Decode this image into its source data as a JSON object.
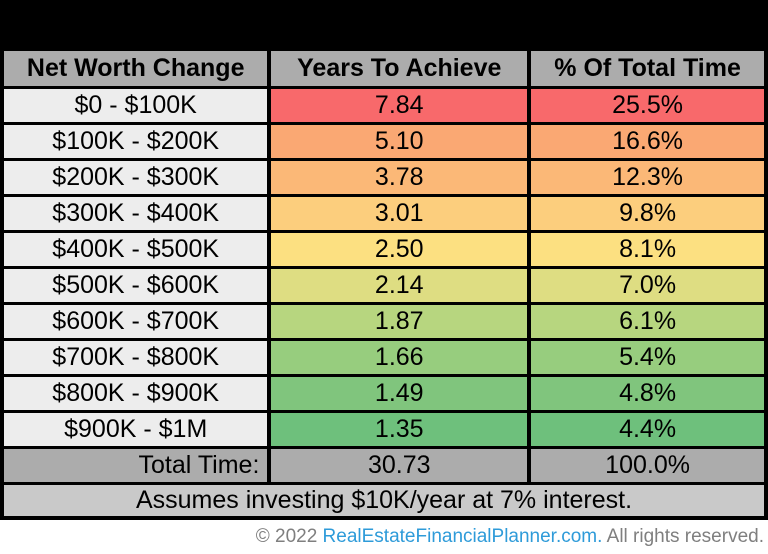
{
  "table": {
    "headers": [
      "Net Worth Change",
      "Years To Achieve",
      "% Of Total Time"
    ],
    "rows": [
      {
        "range": "$0 - $100K",
        "years": "7.84",
        "pct": "25.5%",
        "color": "#F8696B"
      },
      {
        "range": "$100K - $200K",
        "years": "5.10",
        "pct": "16.6%",
        "color": "#FAA873"
      },
      {
        "range": "$200K - $300K",
        "years": "3.78",
        "pct": "12.3%",
        "color": "#FBB877"
      },
      {
        "range": "$300K - $400K",
        "years": "3.01",
        "pct": "9.8%",
        "color": "#FCCE7D"
      },
      {
        "range": "$400K - $500K",
        "years": "2.50",
        "pct": "8.1%",
        "color": "#FCE081"
      },
      {
        "range": "$500K - $600K",
        "years": "2.14",
        "pct": "7.0%",
        "color": "#DEDD82"
      },
      {
        "range": "$600K - $700K",
        "years": "1.87",
        "pct": "6.1%",
        "color": "#B7D67F"
      },
      {
        "range": "$700K - $800K",
        "years": "1.66",
        "pct": "5.4%",
        "color": "#97CD7E"
      },
      {
        "range": "$800K - $900K",
        "years": "1.49",
        "pct": "4.8%",
        "color": "#80C57D"
      },
      {
        "range": "$900K - $1M",
        "years": "1.35",
        "pct": "4.4%",
        "color": "#6EC07C"
      }
    ],
    "total": {
      "label": "Total Time:",
      "years": "30.73",
      "pct": "100.0%"
    },
    "note": "Assumes investing $10K/year at 7% interest."
  },
  "footer": {
    "prefix": "© 2022 ",
    "link": "RealEstateFinancialPlanner.com.",
    "suffix": " All rights reserved."
  },
  "colors": {
    "header_bg": "#ACACAC",
    "range_cell_bg": "#EDEDED",
    "total_row_bg": "#ACACAC",
    "note_row_bg": "#C9C9C9",
    "scale_max_red": "#F8696B",
    "scale_mid_yellow": "#FCE081",
    "scale_min_green": "#6EC07C",
    "border": "#000000",
    "footer_text": "#7F7F7F",
    "footer_link": "#2E9BD9",
    "top_band": "#000000"
  },
  "chart_data": {
    "type": "table",
    "title": "",
    "columns": [
      "Net Worth Change",
      "Years To Achieve",
      "% Of Total Time"
    ],
    "categories": [
      "$0 - $100K",
      "$100K - $200K",
      "$200K - $300K",
      "$300K - $400K",
      "$400K - $500K",
      "$500K - $600K",
      "$600K - $700K",
      "$700K - $800K",
      "$800K - $900K",
      "$900K - $1M"
    ],
    "series": [
      {
        "name": "Years To Achieve",
        "values": [
          7.84,
          5.1,
          3.78,
          3.01,
          2.5,
          2.14,
          1.87,
          1.66,
          1.49,
          1.35
        ]
      },
      {
        "name": "% Of Total Time",
        "values": [
          25.5,
          16.6,
          12.3,
          9.8,
          8.1,
          7.0,
          6.1,
          5.4,
          4.8,
          4.4
        ]
      }
    ],
    "total_row": {
      "label": "Total Time:",
      "years": 30.73,
      "pct": 100.0
    },
    "annotations": [
      "Assumes investing $10K/year at 7% interest."
    ],
    "layout_hints": {
      "color_scale": "red (high) to green (low) on value cells",
      "grid": "black cell borders"
    }
  }
}
